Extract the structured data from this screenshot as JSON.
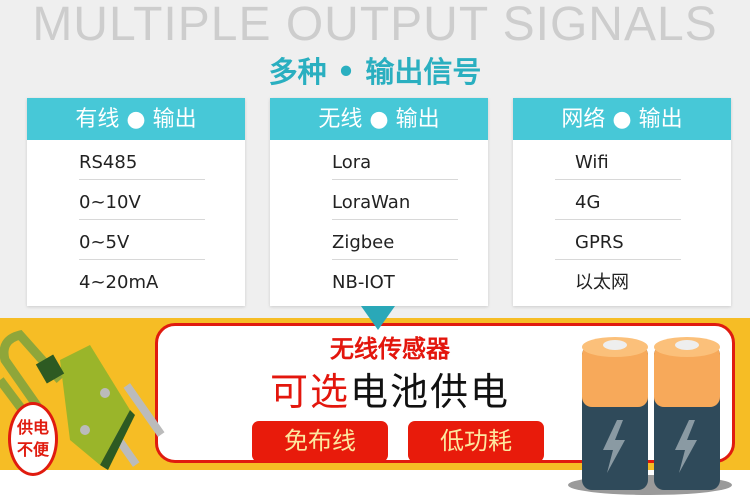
{
  "watermark": "MULTIPLE OUTPUT SIGNALS",
  "title": "多种 • 输出信号",
  "cards": [
    {
      "header": "有线 ● 输出",
      "items": [
        "RS485",
        "0~10V",
        "0~5V",
        "4~20mA"
      ]
    },
    {
      "header": "无线 ● 输出",
      "items": [
        "Lora",
        "LoraWan",
        "Zigbee",
        "NB-IOT"
      ]
    },
    {
      "header": "网络 ● 输出",
      "items": [
        "Wifi",
        "4G",
        "GPRS",
        "以太网"
      ]
    }
  ],
  "banner": {
    "line1": "无线传感器",
    "line2_red": "可选",
    "line2_black": "电池供电",
    "buttons": [
      "免布线",
      "低功耗"
    ],
    "badge": [
      "供电",
      "不便"
    ]
  },
  "colors": {
    "teal": "#47c8d7",
    "yellow": "#f6bd25",
    "red": "#e3160d"
  }
}
